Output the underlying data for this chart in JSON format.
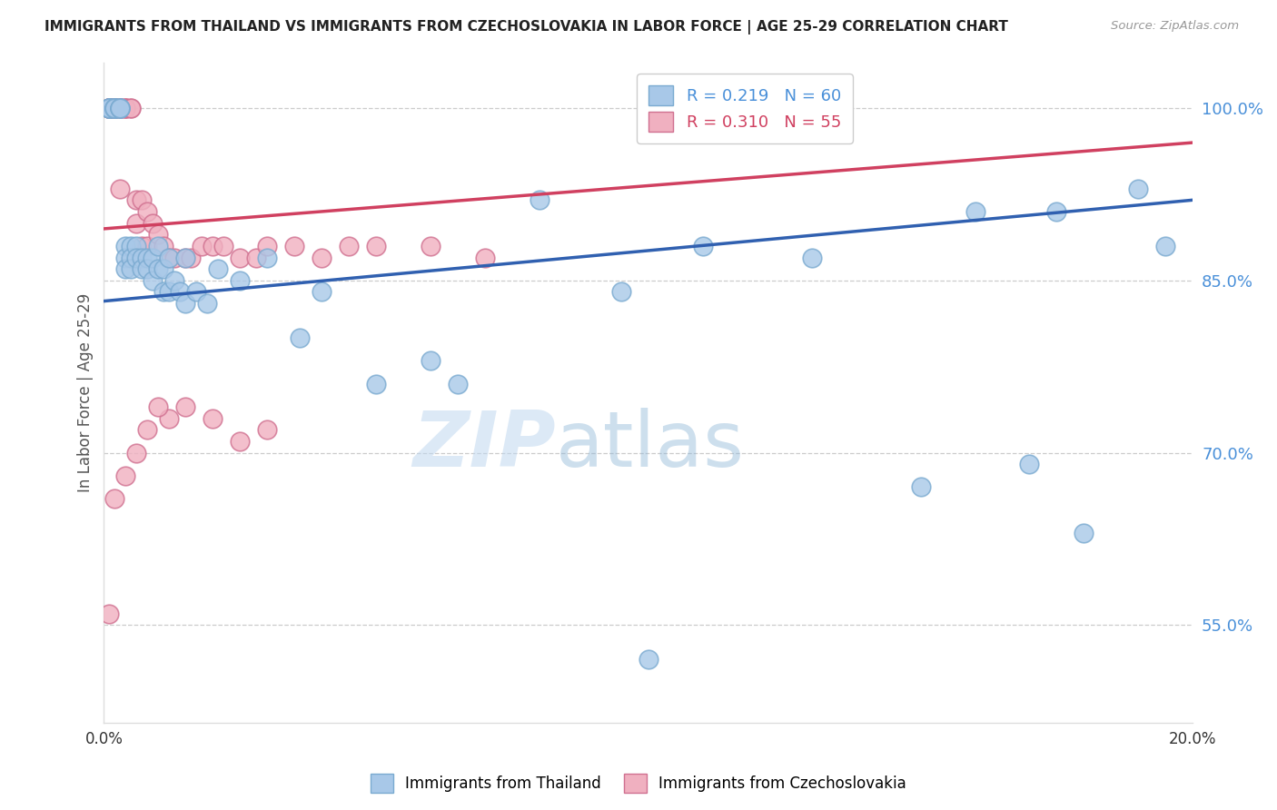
{
  "title": "IMMIGRANTS FROM THAILAND VS IMMIGRANTS FROM CZECHOSLOVAKIA IN LABOR FORCE | AGE 25-29 CORRELATION CHART",
  "source": "Source: ZipAtlas.com",
  "ylabel": "In Labor Force | Age 25-29",
  "x_min": 0.0,
  "x_max": 0.2,
  "y_min": 0.465,
  "y_max": 1.04,
  "y_ticks": [
    0.55,
    0.7,
    0.85,
    1.0
  ],
  "y_tick_labels": [
    "55.0%",
    "70.0%",
    "85.0%",
    "100.0%"
  ],
  "x_ticks": [
    0.0,
    0.025,
    0.05,
    0.075,
    0.1,
    0.125,
    0.15,
    0.175,
    0.2
  ],
  "x_tick_labels": [
    "0.0%",
    "",
    "",
    "",
    "",
    "",
    "",
    "",
    "20.0%"
  ],
  "thailand_color": "#a8c8e8",
  "thailand_edge": "#7aaad0",
  "czechoslovakia_color": "#f0b0c0",
  "czechoslovakia_edge": "#d07090",
  "trend_thailand_color": "#3060b0",
  "trend_czechoslovakia_color": "#d04060",
  "R_thailand": 0.219,
  "N_thailand": 60,
  "R_czechoslovakia": 0.31,
  "N_czechoslovakia": 55,
  "thailand_x": [
    0.001,
    0.001,
    0.001,
    0.001,
    0.001,
    0.002,
    0.002,
    0.002,
    0.002,
    0.002,
    0.003,
    0.003,
    0.003,
    0.003,
    0.004,
    0.004,
    0.004,
    0.005,
    0.005,
    0.005,
    0.006,
    0.006,
    0.007,
    0.007,
    0.008,
    0.008,
    0.009,
    0.009,
    0.01,
    0.01,
    0.011,
    0.011,
    0.012,
    0.012,
    0.013,
    0.014,
    0.015,
    0.015,
    0.017,
    0.019,
    0.021,
    0.025,
    0.03,
    0.036,
    0.04,
    0.05,
    0.06,
    0.065,
    0.08,
    0.095,
    0.11,
    0.13,
    0.16,
    0.175,
    0.19,
    0.195,
    0.1,
    0.15,
    0.18,
    0.17
  ],
  "thailand_y": [
    1.0,
    1.0,
    1.0,
    1.0,
    1.0,
    1.0,
    1.0,
    1.0,
    1.0,
    1.0,
    1.0,
    1.0,
    1.0,
    1.0,
    0.88,
    0.87,
    0.86,
    0.88,
    0.87,
    0.86,
    0.88,
    0.87,
    0.87,
    0.86,
    0.87,
    0.86,
    0.87,
    0.85,
    0.88,
    0.86,
    0.86,
    0.84,
    0.87,
    0.84,
    0.85,
    0.84,
    0.87,
    0.83,
    0.84,
    0.83,
    0.86,
    0.85,
    0.87,
    0.8,
    0.84,
    0.76,
    0.78,
    0.76,
    0.92,
    0.84,
    0.88,
    0.87,
    0.91,
    0.91,
    0.93,
    0.88,
    0.52,
    0.67,
    0.63,
    0.69
  ],
  "czechoslovakia_x": [
    0.001,
    0.001,
    0.001,
    0.001,
    0.001,
    0.001,
    0.002,
    0.002,
    0.002,
    0.002,
    0.003,
    0.003,
    0.003,
    0.004,
    0.004,
    0.004,
    0.005,
    0.005,
    0.006,
    0.006,
    0.007,
    0.007,
    0.008,
    0.008,
    0.009,
    0.01,
    0.011,
    0.012,
    0.013,
    0.015,
    0.016,
    0.018,
    0.02,
    0.022,
    0.025,
    0.028,
    0.03,
    0.035,
    0.04,
    0.045,
    0.05,
    0.06,
    0.07,
    0.03,
    0.025,
    0.02,
    0.015,
    0.012,
    0.01,
    0.008,
    0.006,
    0.004,
    0.002,
    0.001,
    0.003
  ],
  "czechoslovakia_y": [
    1.0,
    1.0,
    1.0,
    1.0,
    1.0,
    1.0,
    1.0,
    1.0,
    1.0,
    1.0,
    1.0,
    1.0,
    1.0,
    1.0,
    1.0,
    1.0,
    1.0,
    1.0,
    0.92,
    0.9,
    0.92,
    0.88,
    0.91,
    0.88,
    0.9,
    0.89,
    0.88,
    0.87,
    0.87,
    0.87,
    0.87,
    0.88,
    0.88,
    0.88,
    0.87,
    0.87,
    0.88,
    0.88,
    0.87,
    0.88,
    0.88,
    0.88,
    0.87,
    0.72,
    0.71,
    0.73,
    0.74,
    0.73,
    0.74,
    0.72,
    0.7,
    0.68,
    0.66,
    0.56,
    0.93
  ],
  "watermark_zip": "ZIP",
  "watermark_atlas": "atlas",
  "background_color": "#ffffff",
  "grid_color": "#cccccc"
}
